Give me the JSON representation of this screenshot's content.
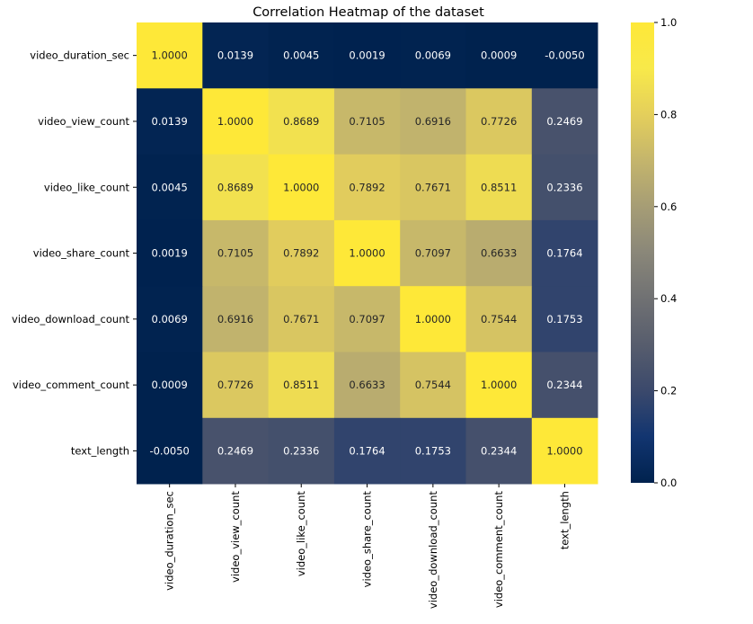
{
  "chart_data": {
    "type": "heatmap",
    "title": "Correlation Heatmap of the dataset",
    "xlabel": "",
    "ylabel": "",
    "colormap": "cividis",
    "value_range": [
      0.0,
      1.0
    ],
    "colorbar_ticks": [
      {
        "value": 0.0,
        "label": "0.0"
      },
      {
        "value": 0.2,
        "label": "0.2"
      },
      {
        "value": 0.4,
        "label": "0.4"
      },
      {
        "value": 0.6,
        "label": "0.6"
      },
      {
        "value": 0.8,
        "label": "0.8"
      },
      {
        "value": 1.0,
        "label": "1.0"
      }
    ],
    "rows": [
      "video_duration_sec",
      "video_view_count",
      "video_like_count",
      "video_share_count",
      "video_download_count",
      "video_comment_count",
      "text_length"
    ],
    "columns": [
      "video_duration_sec",
      "video_view_count",
      "video_like_count",
      "video_share_count",
      "video_download_count",
      "video_comment_count",
      "text_length"
    ],
    "values": [
      [
        1.0,
        0.0139,
        0.0045,
        0.0019,
        0.0069,
        0.0009,
        -0.005
      ],
      [
        0.0139,
        1.0,
        0.8689,
        0.7105,
        0.6916,
        0.7726,
        0.2469
      ],
      [
        0.0045,
        0.8689,
        1.0,
        0.7892,
        0.7671,
        0.8511,
        0.2336
      ],
      [
        0.0019,
        0.7105,
        0.7892,
        1.0,
        0.7097,
        0.6633,
        0.1764
      ],
      [
        0.0069,
        0.6916,
        0.7671,
        0.7097,
        1.0,
        0.7544,
        0.1753
      ],
      [
        0.0009,
        0.7726,
        0.8511,
        0.6633,
        0.7544,
        1.0,
        0.2344
      ],
      [
        -0.005,
        0.2469,
        0.2336,
        0.1764,
        0.1753,
        0.2344,
        1.0
      ]
    ],
    "annotation_format": "4 decimals",
    "grid": false
  }
}
